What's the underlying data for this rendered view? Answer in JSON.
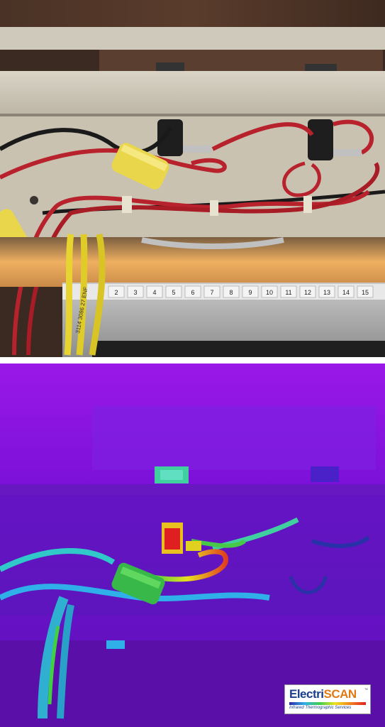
{
  "photo": {
    "description_label": "visible-light-photo",
    "terminal_strip_numbers": [
      "2",
      "3",
      "4",
      "5",
      "6",
      "7",
      "8",
      "9",
      "10",
      "11",
      "12",
      "13",
      "14",
      "15"
    ],
    "wire_marking": "3114 3086 27 ENF"
  },
  "thermal": {
    "description_label": "infrared-thermal-image"
  },
  "logo": {
    "name_part1": "Electri",
    "name_part2": "SCAN",
    "trademark": "™",
    "tagline": "Infrared Thermographic Services"
  },
  "colors": {
    "thermal_background": "#8a10e0",
    "hot_spot": "#e02020",
    "warm": "#f0e020",
    "cool": "#2fb0e8",
    "brand_blue": "#1a3f8f",
    "brand_orange": "#e07a12"
  }
}
